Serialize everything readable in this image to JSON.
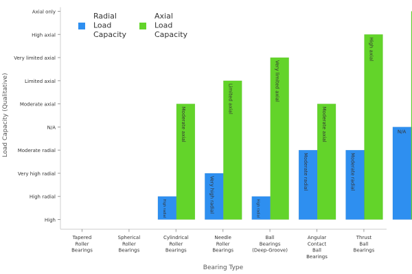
{
  "chart_data": {
    "type": "bar",
    "xlabel": "Bearing Type",
    "ylabel": "Load Capacity (Qualitative)",
    "y_levels": [
      "High",
      "High radial",
      "Very high radial",
      "Moderate radial",
      "N/A",
      "Moderate axial",
      "Limited axial",
      "Very limited axial",
      "High axial",
      "Axial only"
    ],
    "categories": [
      [
        "Tapered",
        "Roller",
        "Bearings"
      ],
      [
        "Spherical",
        "Roller",
        "Bearings"
      ],
      [
        "Cylindrical",
        "Roller",
        "Bearings"
      ],
      [
        "Needle",
        "Roller",
        "Bearings"
      ],
      [
        "Ball",
        "Bearings",
        "(Deep-Groove)"
      ],
      [
        "Angular",
        "Contact",
        "Ball",
        "Bearings"
      ],
      [
        "Thrust",
        "Ball",
        "Bearings"
      ]
    ],
    "legend_position": "top-left",
    "grid": false,
    "series": [
      {
        "name": [
          "Radial",
          "Load",
          "Capacity"
        ],
        "color": "#2e8ff0",
        "values": [
          "High",
          "High radial",
          "Very high radial",
          "High radial",
          "Moderate radial",
          "Moderate radial",
          "N/A"
        ]
      },
      {
        "name": [
          "Axial",
          "Load",
          "Capacity"
        ],
        "color": "#63d42a",
        "values": [
          "High",
          "Moderate axial",
          "Limited axial",
          "Very limited axial",
          "Moderate axial",
          "High axial",
          "Axial only"
        ]
      }
    ]
  }
}
